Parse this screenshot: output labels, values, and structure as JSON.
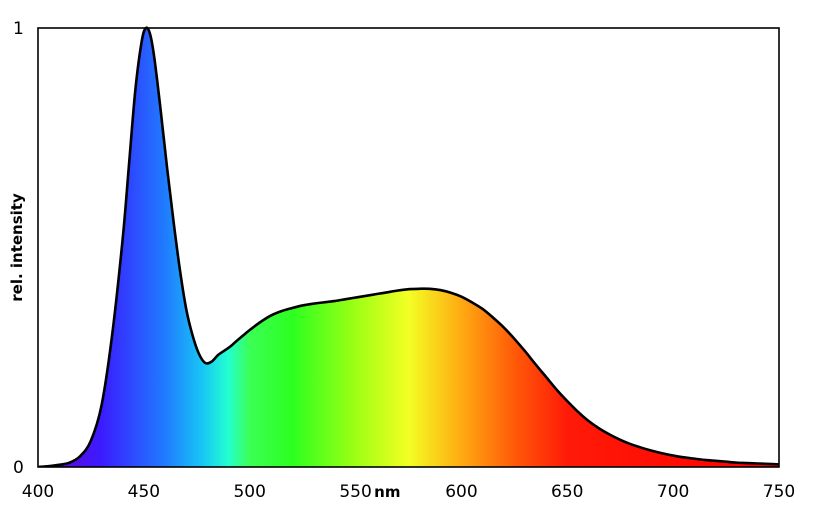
{
  "chart_data": {
    "type": "area",
    "title": "",
    "xlabel": "nm",
    "ylabel": "rel. intensity",
    "xlim": [
      400,
      750
    ],
    "ylim": [
      0,
      1
    ],
    "x_ticks": [
      "400",
      "450",
      "500",
      "550",
      "600",
      "650",
      "700",
      "750"
    ],
    "y_ticks": [
      "0",
      "1"
    ],
    "grid": false,
    "legend": "none",
    "line_color": "#000000",
    "fill": "visible-spectrum gradient (violet to red) under the curve",
    "spectrum_colors": [
      {
        "nm": 405,
        "color": "#6a00d8"
      },
      {
        "nm": 430,
        "color": "#3a1cff"
      },
      {
        "nm": 460,
        "color": "#1f7bff"
      },
      {
        "nm": 478,
        "color": "#18c8f4"
      },
      {
        "nm": 490,
        "color": "#24ffd0"
      },
      {
        "nm": 500,
        "color": "#3bff55"
      },
      {
        "nm": 520,
        "color": "#2cff20"
      },
      {
        "nm": 550,
        "color": "#9dff14"
      },
      {
        "nm": 575,
        "color": "#f3ff24"
      },
      {
        "nm": 600,
        "color": "#ffaa12"
      },
      {
        "nm": 625,
        "color": "#ff5a08"
      },
      {
        "nm": 650,
        "color": "#ff1a08"
      },
      {
        "nm": 750,
        "color": "#ff0000"
      }
    ],
    "series": [
      {
        "x": [
          400,
          405,
          410,
          415,
          420,
          425,
          430,
          435,
          440,
          443,
          446,
          449,
          451,
          453,
          455,
          458,
          461,
          464,
          467,
          470,
          473,
          476,
          479,
          482,
          485,
          488,
          491,
          494,
          497,
          500,
          505,
          510,
          515,
          520,
          525,
          530,
          535,
          540,
          545,
          550,
          555,
          560,
          565,
          570,
          575,
          580,
          585,
          590,
          595,
          600,
          605,
          610,
          615,
          620,
          625,
          630,
          635,
          640,
          645,
          650,
          655,
          660,
          665,
          670,
          675,
          680,
          685,
          690,
          695,
          700,
          705,
          710,
          715,
          720,
          725,
          730,
          735,
          740,
          745,
          750
        ],
        "y": [
          0.0,
          0.002,
          0.005,
          0.01,
          0.025,
          0.06,
          0.14,
          0.3,
          0.52,
          0.69,
          0.86,
          0.97,
          1.0,
          0.985,
          0.93,
          0.81,
          0.68,
          0.56,
          0.45,
          0.36,
          0.3,
          0.258,
          0.237,
          0.24,
          0.255,
          0.265,
          0.275,
          0.288,
          0.3,
          0.312,
          0.33,
          0.345,
          0.355,
          0.362,
          0.368,
          0.372,
          0.375,
          0.378,
          0.382,
          0.386,
          0.39,
          0.394,
          0.398,
          0.402,
          0.405,
          0.406,
          0.406,
          0.403,
          0.397,
          0.388,
          0.375,
          0.36,
          0.34,
          0.318,
          0.292,
          0.264,
          0.234,
          0.205,
          0.176,
          0.15,
          0.126,
          0.105,
          0.088,
          0.074,
          0.062,
          0.052,
          0.044,
          0.037,
          0.031,
          0.026,
          0.022,
          0.019,
          0.016,
          0.014,
          0.012,
          0.01,
          0.009,
          0.008,
          0.007,
          0.006
        ]
      }
    ]
  }
}
